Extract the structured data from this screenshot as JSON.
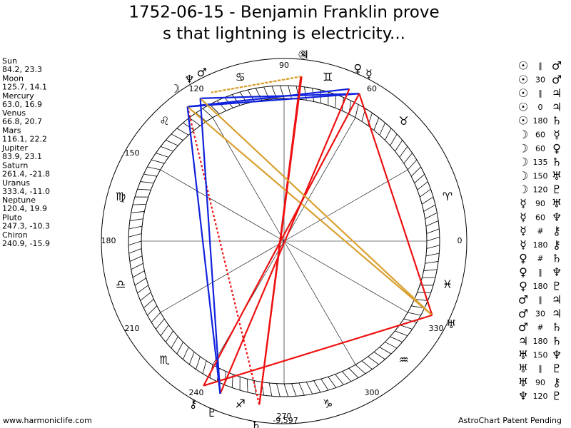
{
  "header": {
    "title_lines": [
      "1752-06-15 - Benjamin Franklin prove",
      "s that lightning is electricity..."
    ]
  },
  "planets": [
    {
      "name": "Sun",
      "coords": "84.2, 23.3",
      "glyph": "☉"
    },
    {
      "name": "Moon",
      "coords": "125.7, 14.1",
      "glyph": "☽"
    },
    {
      "name": "Mercury",
      "coords": "63.0, 16.9",
      "glyph": "☿"
    },
    {
      "name": "Venus",
      "coords": "66.8, 20.7",
      "glyph": "♀"
    },
    {
      "name": "Mars",
      "coords": "116.1, 22.2",
      "glyph": "♂"
    },
    {
      "name": "Jupiter",
      "coords": "83.9, 23.1",
      "glyph": "♃"
    },
    {
      "name": "Saturn",
      "coords": "261.4, -21.8",
      "glyph": "♄"
    },
    {
      "name": "Uranus",
      "coords": "333.4, -11.0",
      "glyph": "♅"
    },
    {
      "name": "Neptune",
      "coords": "120.4, 19.9",
      "glyph": "♆"
    },
    {
      "name": "Pluto",
      "coords": "247.3, -10.3",
      "glyph": "♇"
    },
    {
      "name": "Chiron",
      "coords": "240.9, -15.9",
      "glyph": "⚷"
    }
  ],
  "zodiac": [
    "♈",
    "♉",
    "♊",
    "♋",
    "♌",
    "♍",
    "♎",
    "♏",
    "♐",
    "♑",
    "♒",
    "♓"
  ],
  "degree_labels": [
    0,
    60,
    90,
    120,
    150,
    180,
    210,
    240,
    270,
    300,
    330
  ],
  "bottom_label": "-9,597",
  "aspects": [
    [
      "☉",
      "∥",
      "♂"
    ],
    [
      "☉",
      "30",
      "♂"
    ],
    [
      "☉",
      "∥",
      "♃"
    ],
    [
      "☉",
      "0",
      "♃"
    ],
    [
      "☉",
      "180",
      "♄"
    ],
    [
      "☽",
      "60",
      "☿"
    ],
    [
      "☽",
      "60",
      "♀"
    ],
    [
      "☽",
      "135",
      "♄"
    ],
    [
      "☽",
      "150",
      "♅"
    ],
    [
      "☽",
      "120",
      "♇"
    ],
    [
      "☿",
      "90",
      "♅"
    ],
    [
      "☿",
      "60",
      "♆"
    ],
    [
      "☿",
      "#",
      "⚷"
    ],
    [
      "☿",
      "180",
      "⚷"
    ],
    [
      "♀",
      "#",
      "♄"
    ],
    [
      "♀",
      "∥",
      "♆"
    ],
    [
      "♀",
      "180",
      "♇"
    ],
    [
      "♂",
      "∥",
      "♃"
    ],
    [
      "♂",
      "30",
      "♃"
    ],
    [
      "♂",
      "#",
      "♄"
    ],
    [
      "♃",
      "180",
      "♄"
    ],
    [
      "♅",
      "150",
      "♆"
    ],
    [
      "♅",
      "∥",
      "♇"
    ],
    [
      "♅",
      "90",
      "⚷"
    ],
    [
      "♆",
      "120",
      "♇"
    ]
  ],
  "aspect_line_styles": {
    "180": {
      "color": "#ee1111"
    },
    "90": {
      "color": "#ee1111"
    },
    "135": {
      "color": "#ee1111",
      "dash": true
    },
    "60": {
      "color": "#1122dd"
    },
    "120": {
      "color": "#1122dd"
    },
    "150": {
      "color": "#d9a030"
    },
    "30": {
      "color": "#d9a030",
      "dash": true
    }
  },
  "footer": {
    "left": "www.harmoniclife.com",
    "right": "AstroChart Patent Pending"
  }
}
